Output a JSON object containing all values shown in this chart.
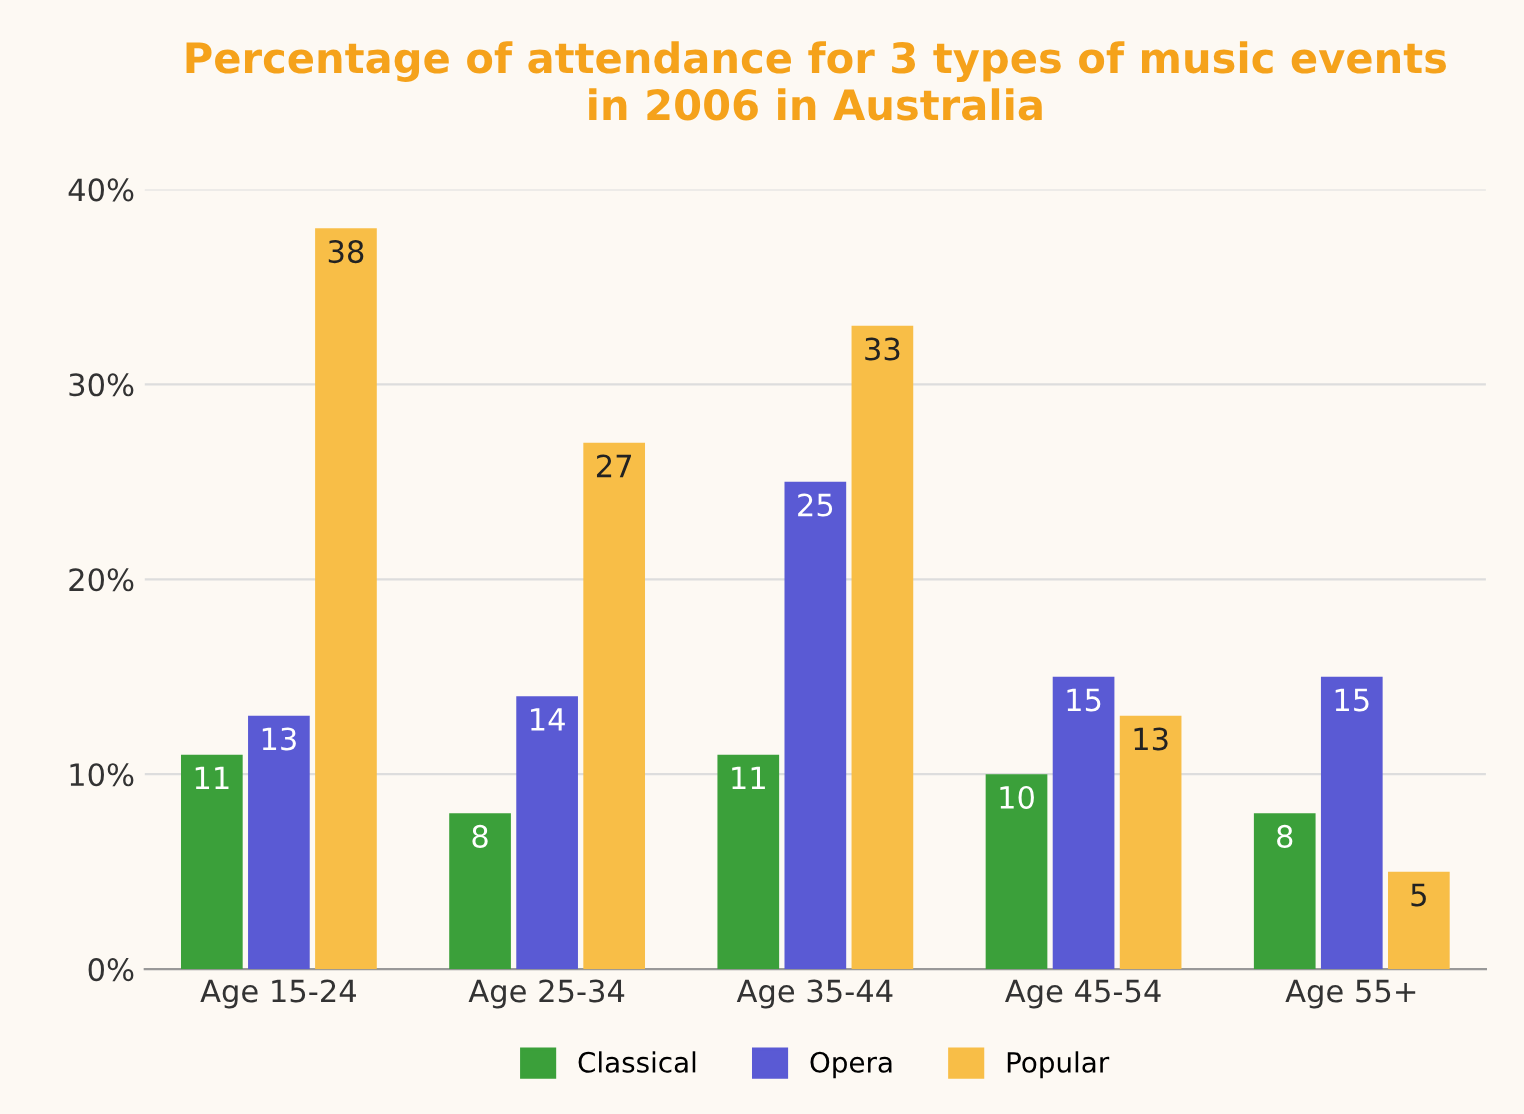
{
  "chart_data": {
    "type": "bar",
    "title": "Percentage of attendance for 3 types of music events\nin 2006 in Australia",
    "categories": [
      "Age 15-24",
      "Age 25-34",
      "Age 35-44",
      "Age 45-54",
      "Age 55+"
    ],
    "series": [
      {
        "name": "Classical",
        "color": "#3ba03a",
        "values": [
          11,
          8,
          11,
          10,
          8
        ]
      },
      {
        "name": "Opera",
        "color": "#5a5ad4",
        "values": [
          13,
          14,
          25,
          15,
          15
        ]
      },
      {
        "name": "Popular",
        "color": "#f8be47",
        "values": [
          38,
          27,
          33,
          13,
          5
        ]
      }
    ],
    "ylim": [
      0,
      40
    ],
    "yticks": [
      {
        "value": 0,
        "label": "0%"
      },
      {
        "value": 10,
        "label": "10%"
      },
      {
        "value": 20,
        "label": "20%"
      },
      {
        "value": 30,
        "label": "30%"
      },
      {
        "value": 40,
        "label": "40%"
      }
    ],
    "grid": "y",
    "legend": "bottom",
    "data_labels": true
  }
}
